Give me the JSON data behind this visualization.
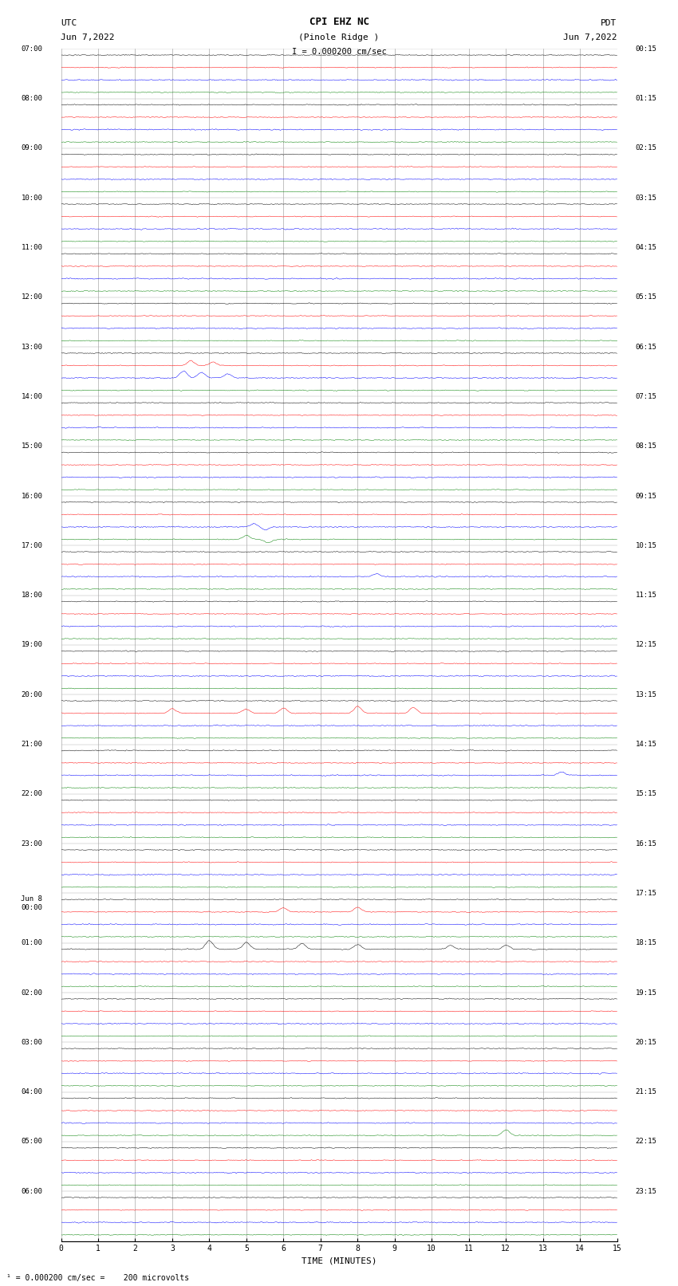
{
  "title_line1": "CPI EHZ NC",
  "title_line2": "(Pinole Ridge )",
  "scale_text": "I = 0.000200 cm/sec",
  "left_label": "UTC",
  "left_date": "Jun 7,2022",
  "right_label": "PDT",
  "right_date": "Jun 7,2022",
  "xlabel": "TIME (MINUTES)",
  "bottom_note": "= 0.000200 cm/sec =    200 microvolts",
  "num_rows": 96,
  "xlim": [
    0,
    15
  ],
  "xticks": [
    0,
    1,
    2,
    3,
    4,
    5,
    6,
    7,
    8,
    9,
    10,
    11,
    12,
    13,
    14,
    15
  ],
  "colors": [
    "black",
    "red",
    "blue",
    "green"
  ],
  "background_color": "white",
  "vline_color": "#aaaaaa",
  "hline_color": "#aaaaaa",
  "fig_width": 8.5,
  "fig_height": 16.13,
  "left_labels_utc": [
    "07:00",
    "08:00",
    "09:00",
    "10:00",
    "11:00",
    "12:00",
    "13:00",
    "14:00",
    "15:00",
    "16:00",
    "17:00",
    "18:00",
    "19:00",
    "20:00",
    "21:00",
    "22:00",
    "23:00",
    "Jun 8\n00:00",
    "01:00",
    "02:00",
    "03:00",
    "04:00",
    "05:00",
    "06:00"
  ],
  "right_labels_pdt": [
    "00:15",
    "01:15",
    "02:15",
    "03:15",
    "04:15",
    "05:15",
    "06:15",
    "07:15",
    "08:15",
    "09:15",
    "10:15",
    "11:15",
    "12:15",
    "13:15",
    "14:15",
    "15:15",
    "16:15",
    "17:15",
    "18:15",
    "19:15",
    "20:15",
    "21:15",
    "22:15",
    "23:15"
  ],
  "noise_scale": 0.12,
  "trace_scale": 0.38
}
